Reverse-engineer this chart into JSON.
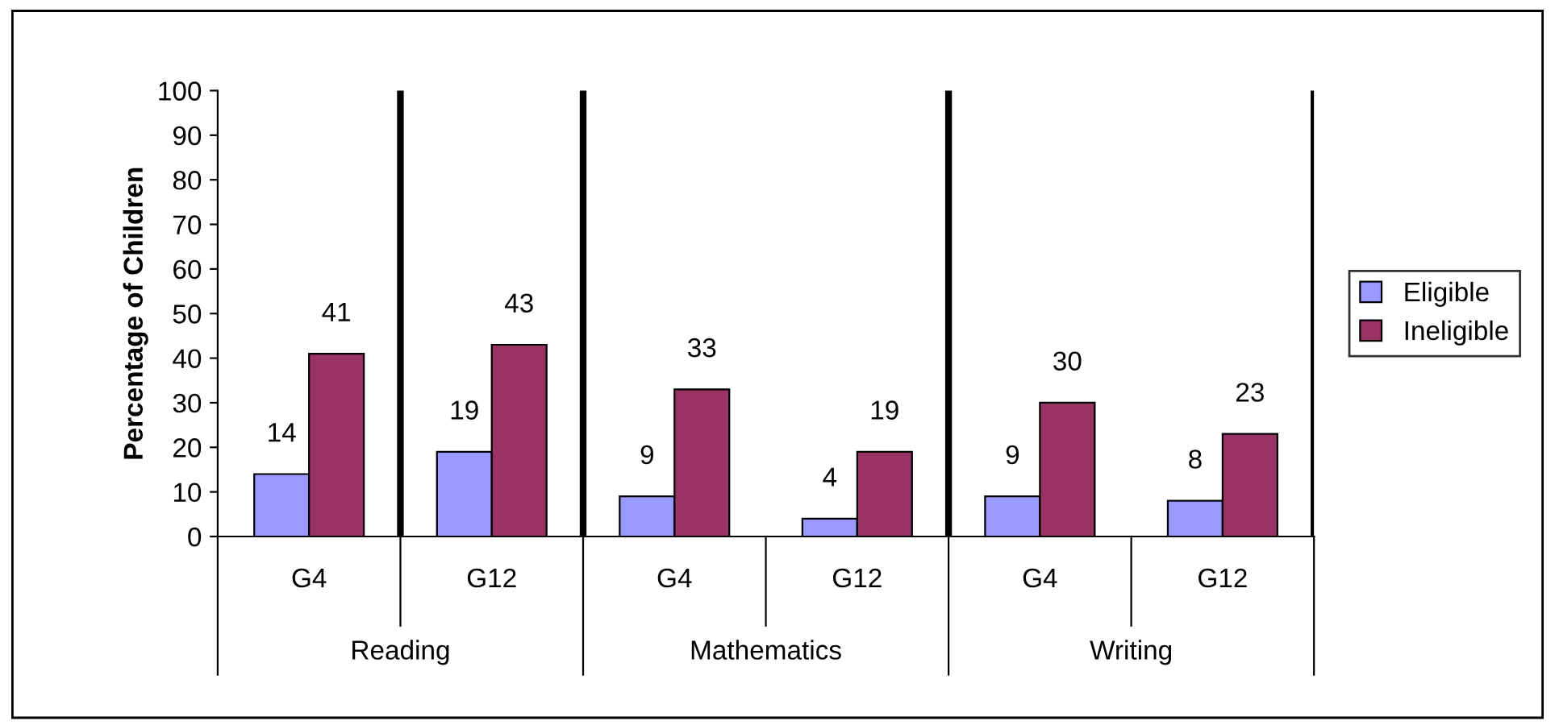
{
  "chart_data": {
    "type": "bar",
    "ylabel": "Percentage of Children",
    "categories": [
      "G4",
      "G12",
      "G4",
      "G12",
      "G4",
      "G12"
    ],
    "series": [
      {
        "name": "Eligible",
        "color": "#9999ff",
        "values": [
          14,
          19,
          9,
          4,
          9,
          8
        ]
      },
      {
        "name": "Ineligible",
        "color": "#993366",
        "values": [
          41,
          43,
          33,
          19,
          30,
          23
        ]
      }
    ],
    "annotations": [
      "Reading",
      "Mathematics",
      "Writing"
    ],
    "ylim": [
      0,
      100
    ],
    "yticks": [
      0,
      10,
      20,
      30,
      40,
      50,
      60,
      70,
      80,
      90,
      100
    ],
    "data_labels": true,
    "grid": false,
    "legend": "right"
  }
}
